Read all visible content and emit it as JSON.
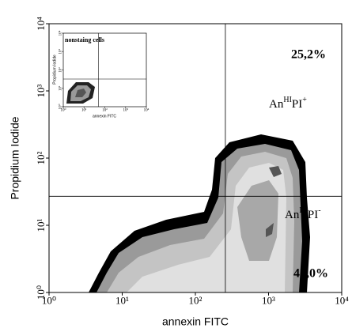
{
  "chart_data": {
    "type": "density",
    "xlabel": "annexin FITC",
    "ylabel": "Propidium Iodide",
    "xscale": "log",
    "yscale": "log",
    "xlim": [
      1,
      10000
    ],
    "ylim": [
      1,
      10000
    ],
    "xticks": [
      {
        "value": 1,
        "label": "10⁰"
      },
      {
        "value": 10,
        "label": "10¹"
      },
      {
        "value": 100,
        "label": "10²"
      },
      {
        "value": 1000,
        "label": "10³"
      },
      {
        "value": 10000,
        "label": "10⁴"
      }
    ],
    "yticks": [
      {
        "value": 1,
        "label": "10⁰"
      },
      {
        "value": 10,
        "label": "10¹"
      },
      {
        "value": 100,
        "label": "10²"
      },
      {
        "value": 1000,
        "label": "10³"
      },
      {
        "value": 10000,
        "label": "10⁴"
      }
    ],
    "gates": {
      "x": 257,
      "y": 27
    },
    "annotations": [
      {
        "text": "25,2%"
      },
      {
        "text": "43,0%"
      }
    ],
    "quadrant_labels": [
      {
        "parts": [
          "An",
          "HI",
          "PI",
          "+"
        ]
      },
      {
        "parts": [
          "An",
          "HI",
          "PI",
          "-"
        ]
      }
    ],
    "inset": {
      "title": "nonstaing cells",
      "xlabel": "annexin FITC",
      "ylabel": "Propidium Iodide",
      "xlim": [
        1,
        10000
      ],
      "ylim": [
        1,
        10000
      ],
      "xticks": [
        {
          "value": 1,
          "label": "10⁰"
        },
        {
          "value": 10,
          "label": "10¹"
        },
        {
          "value": 100,
          "label": "10²"
        },
        {
          "value": 1000,
          "label": "10³"
        },
        {
          "value": 10000,
          "label": "10⁴"
        }
      ],
      "yticks": [
        {
          "value": 1,
          "label": "10⁰"
        },
        {
          "value": 10,
          "label": "10¹"
        },
        {
          "value": 100,
          "label": "10²"
        },
        {
          "value": 1000,
          "label": "10³"
        },
        {
          "value": 10000,
          "label": "10⁴"
        }
      ],
      "gates": {
        "x": 50,
        "y": 32
      }
    }
  }
}
